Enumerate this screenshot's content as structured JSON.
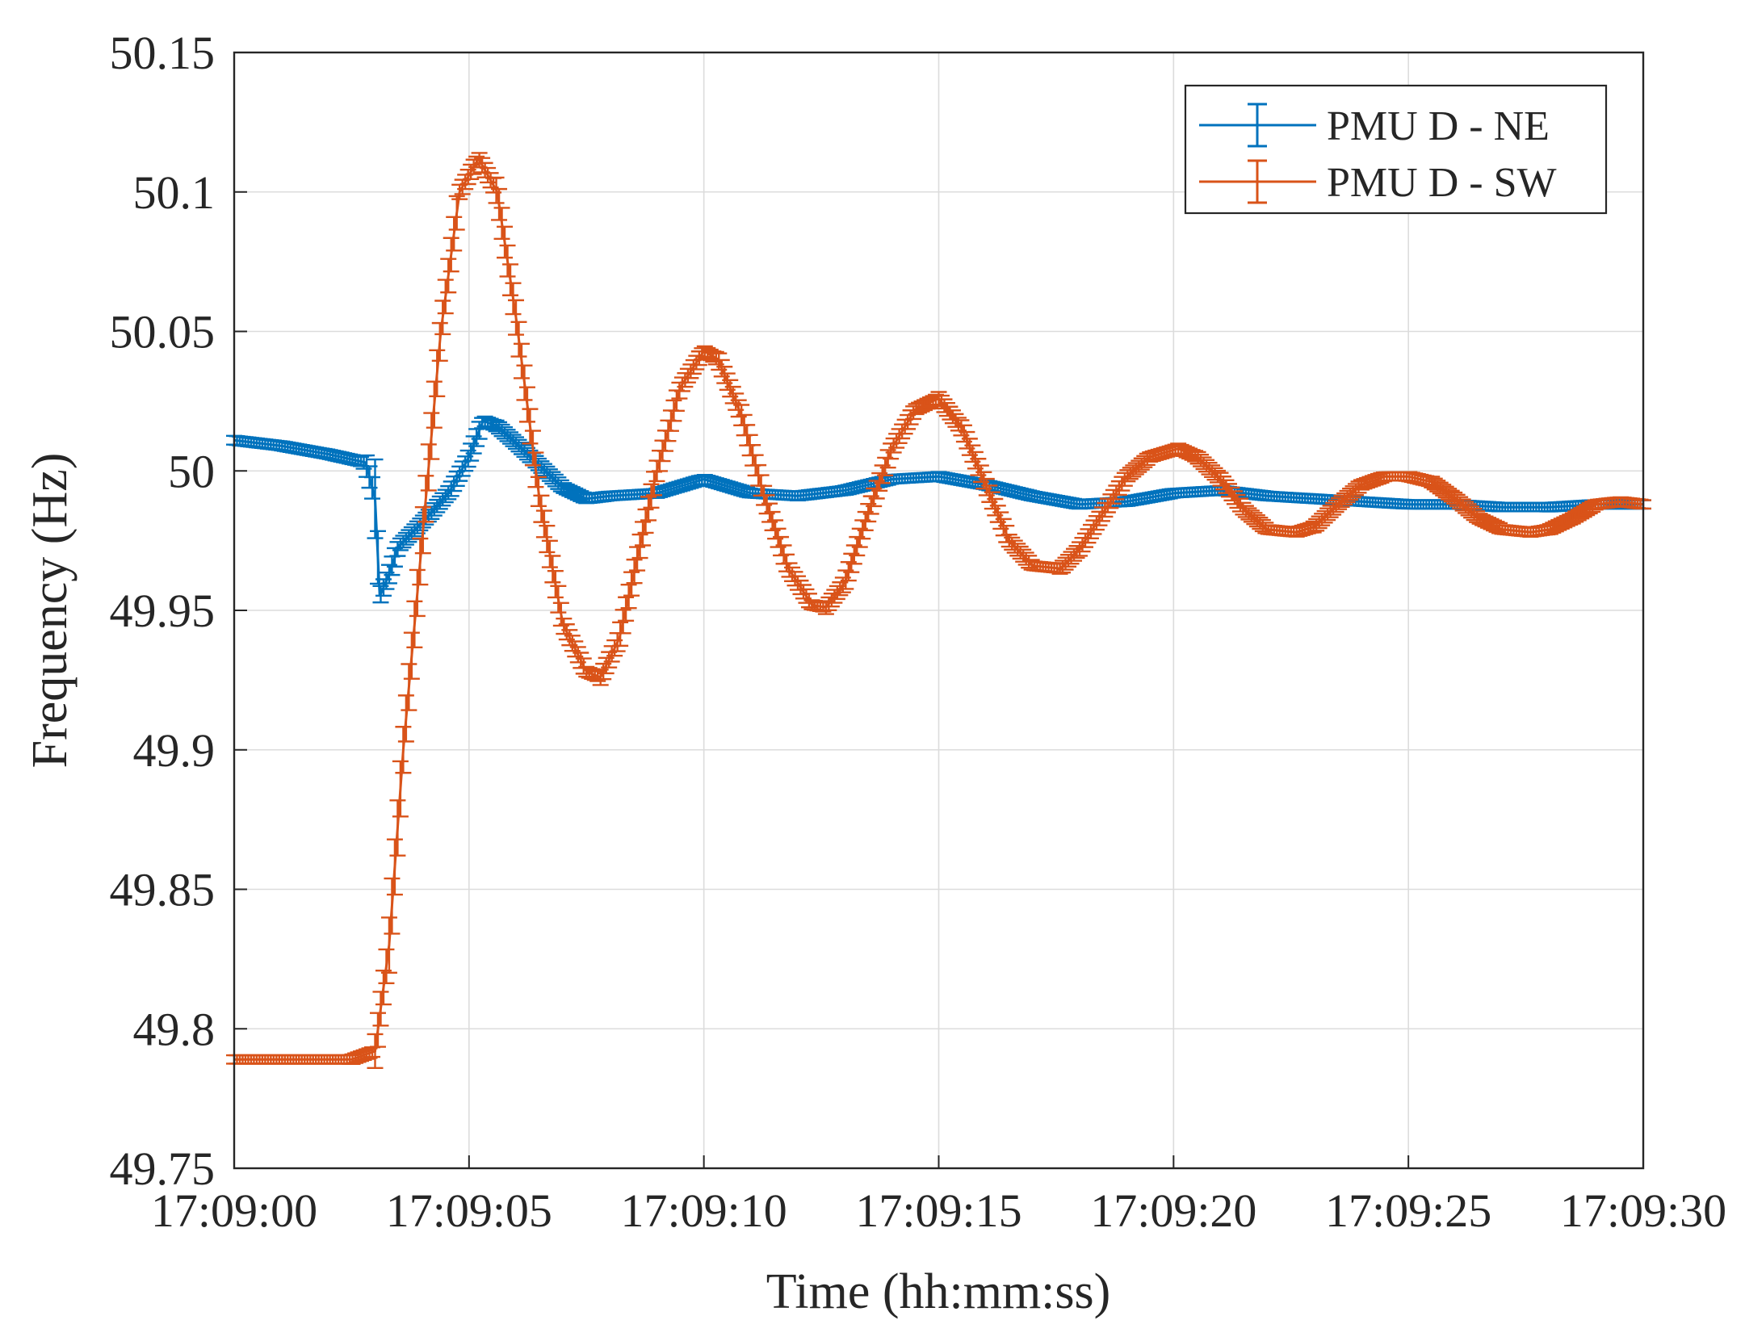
{
  "chart_data": {
    "type": "line",
    "title": "",
    "xlabel": "Time (hh:mm:ss)",
    "ylabel": "Frequency (Hz)",
    "x_unit": "seconds after 17:09:00",
    "xlim": [
      0,
      30
    ],
    "ylim": [
      49.75,
      50.15
    ],
    "x_ticks": [
      0,
      5,
      10,
      15,
      20,
      25,
      30
    ],
    "x_tick_labels": [
      "17:09:00",
      "17:09:05",
      "17:09:10",
      "17:09:15",
      "17:09:20",
      "17:09:25",
      "17:09:30"
    ],
    "y_ticks": [
      49.75,
      49.8,
      49.85,
      49.9,
      49.95,
      50,
      50.05,
      50.1,
      50.15
    ],
    "y_tick_labels": [
      "49.75",
      "49.8",
      "49.85",
      "49.9",
      "49.95",
      "50",
      "50.05",
      "50.1",
      "50.15"
    ],
    "grid": true,
    "legend_position": "top-right",
    "error_bars": true,
    "series": [
      {
        "name": "PMU D - NE",
        "color": "#0072BD",
        "x": [
          0,
          1,
          2,
          2.8,
          3.0,
          3.1,
          3.3,
          3.5,
          3.8,
          4.2,
          4.6,
          5.0,
          5.3,
          5.6,
          6.0,
          6.5,
          7.0,
          7.5,
          8.0,
          9.0,
          10.0,
          11.0,
          12.0,
          13.0,
          14.0,
          15.0,
          16.0,
          17.0,
          18.0,
          19.0,
          20.0,
          21.0,
          22.0,
          23.0,
          24.0,
          25.0,
          26.0,
          27.0,
          28.0,
          29.0,
          30.0
        ],
        "y": [
          50.011,
          50.009,
          50.006,
          50.003,
          49.99,
          49.955,
          49.963,
          49.973,
          49.978,
          49.985,
          49.993,
          50.005,
          50.018,
          50.016,
          50.01,
          50.002,
          49.994,
          49.99,
          49.991,
          49.992,
          49.997,
          49.992,
          49.991,
          49.993,
          49.997,
          49.998,
          49.995,
          49.991,
          49.988,
          49.989,
          49.992,
          49.993,
          49.991,
          49.99,
          49.989,
          49.988,
          49.988,
          49.987,
          49.987,
          49.988,
          49.988
        ]
      },
      {
        "name": "PMU D - SW",
        "color": "#D95319",
        "x": [
          0,
          1,
          2,
          2.5,
          3.0,
          3.3,
          3.6,
          4.0,
          4.4,
          4.8,
          5.2,
          5.6,
          6.0,
          6.5,
          7.0,
          7.5,
          7.8,
          8.2,
          8.6,
          9.0,
          9.5,
          10.0,
          10.3,
          10.8,
          11.3,
          11.8,
          12.3,
          12.6,
          13.0,
          13.5,
          14.0,
          14.5,
          15.0,
          15.5,
          16.0,
          16.5,
          17.0,
          17.6,
          18.0,
          18.5,
          19.0,
          19.5,
          20.1,
          20.5,
          21.0,
          21.5,
          22.0,
          22.6,
          23.0,
          23.5,
          24.0,
          24.5,
          25.0,
          25.5,
          26.0,
          26.5,
          27.0,
          27.6,
          28.0,
          28.5,
          29.0,
          29.5,
          30.0
        ],
        "y": [
          49.789,
          49.789,
          49.789,
          49.789,
          49.792,
          49.83,
          49.9,
          49.975,
          50.05,
          50.1,
          50.112,
          50.1,
          50.055,
          49.99,
          49.945,
          49.928,
          49.926,
          49.94,
          49.97,
          50.0,
          50.03,
          50.043,
          50.04,
          50.02,
          49.99,
          49.965,
          49.952,
          49.951,
          49.96,
          49.985,
          50.008,
          50.022,
          50.026,
          50.015,
          49.995,
          49.975,
          49.966,
          49.965,
          49.972,
          49.985,
          49.998,
          50.005,
          50.008,
          50.005,
          49.997,
          49.986,
          49.979,
          49.978,
          49.98,
          49.988,
          49.995,
          49.998,
          49.998,
          49.996,
          49.99,
          49.983,
          49.979,
          49.978,
          49.979,
          49.983,
          49.988,
          49.989,
          49.988
        ]
      }
    ]
  }
}
